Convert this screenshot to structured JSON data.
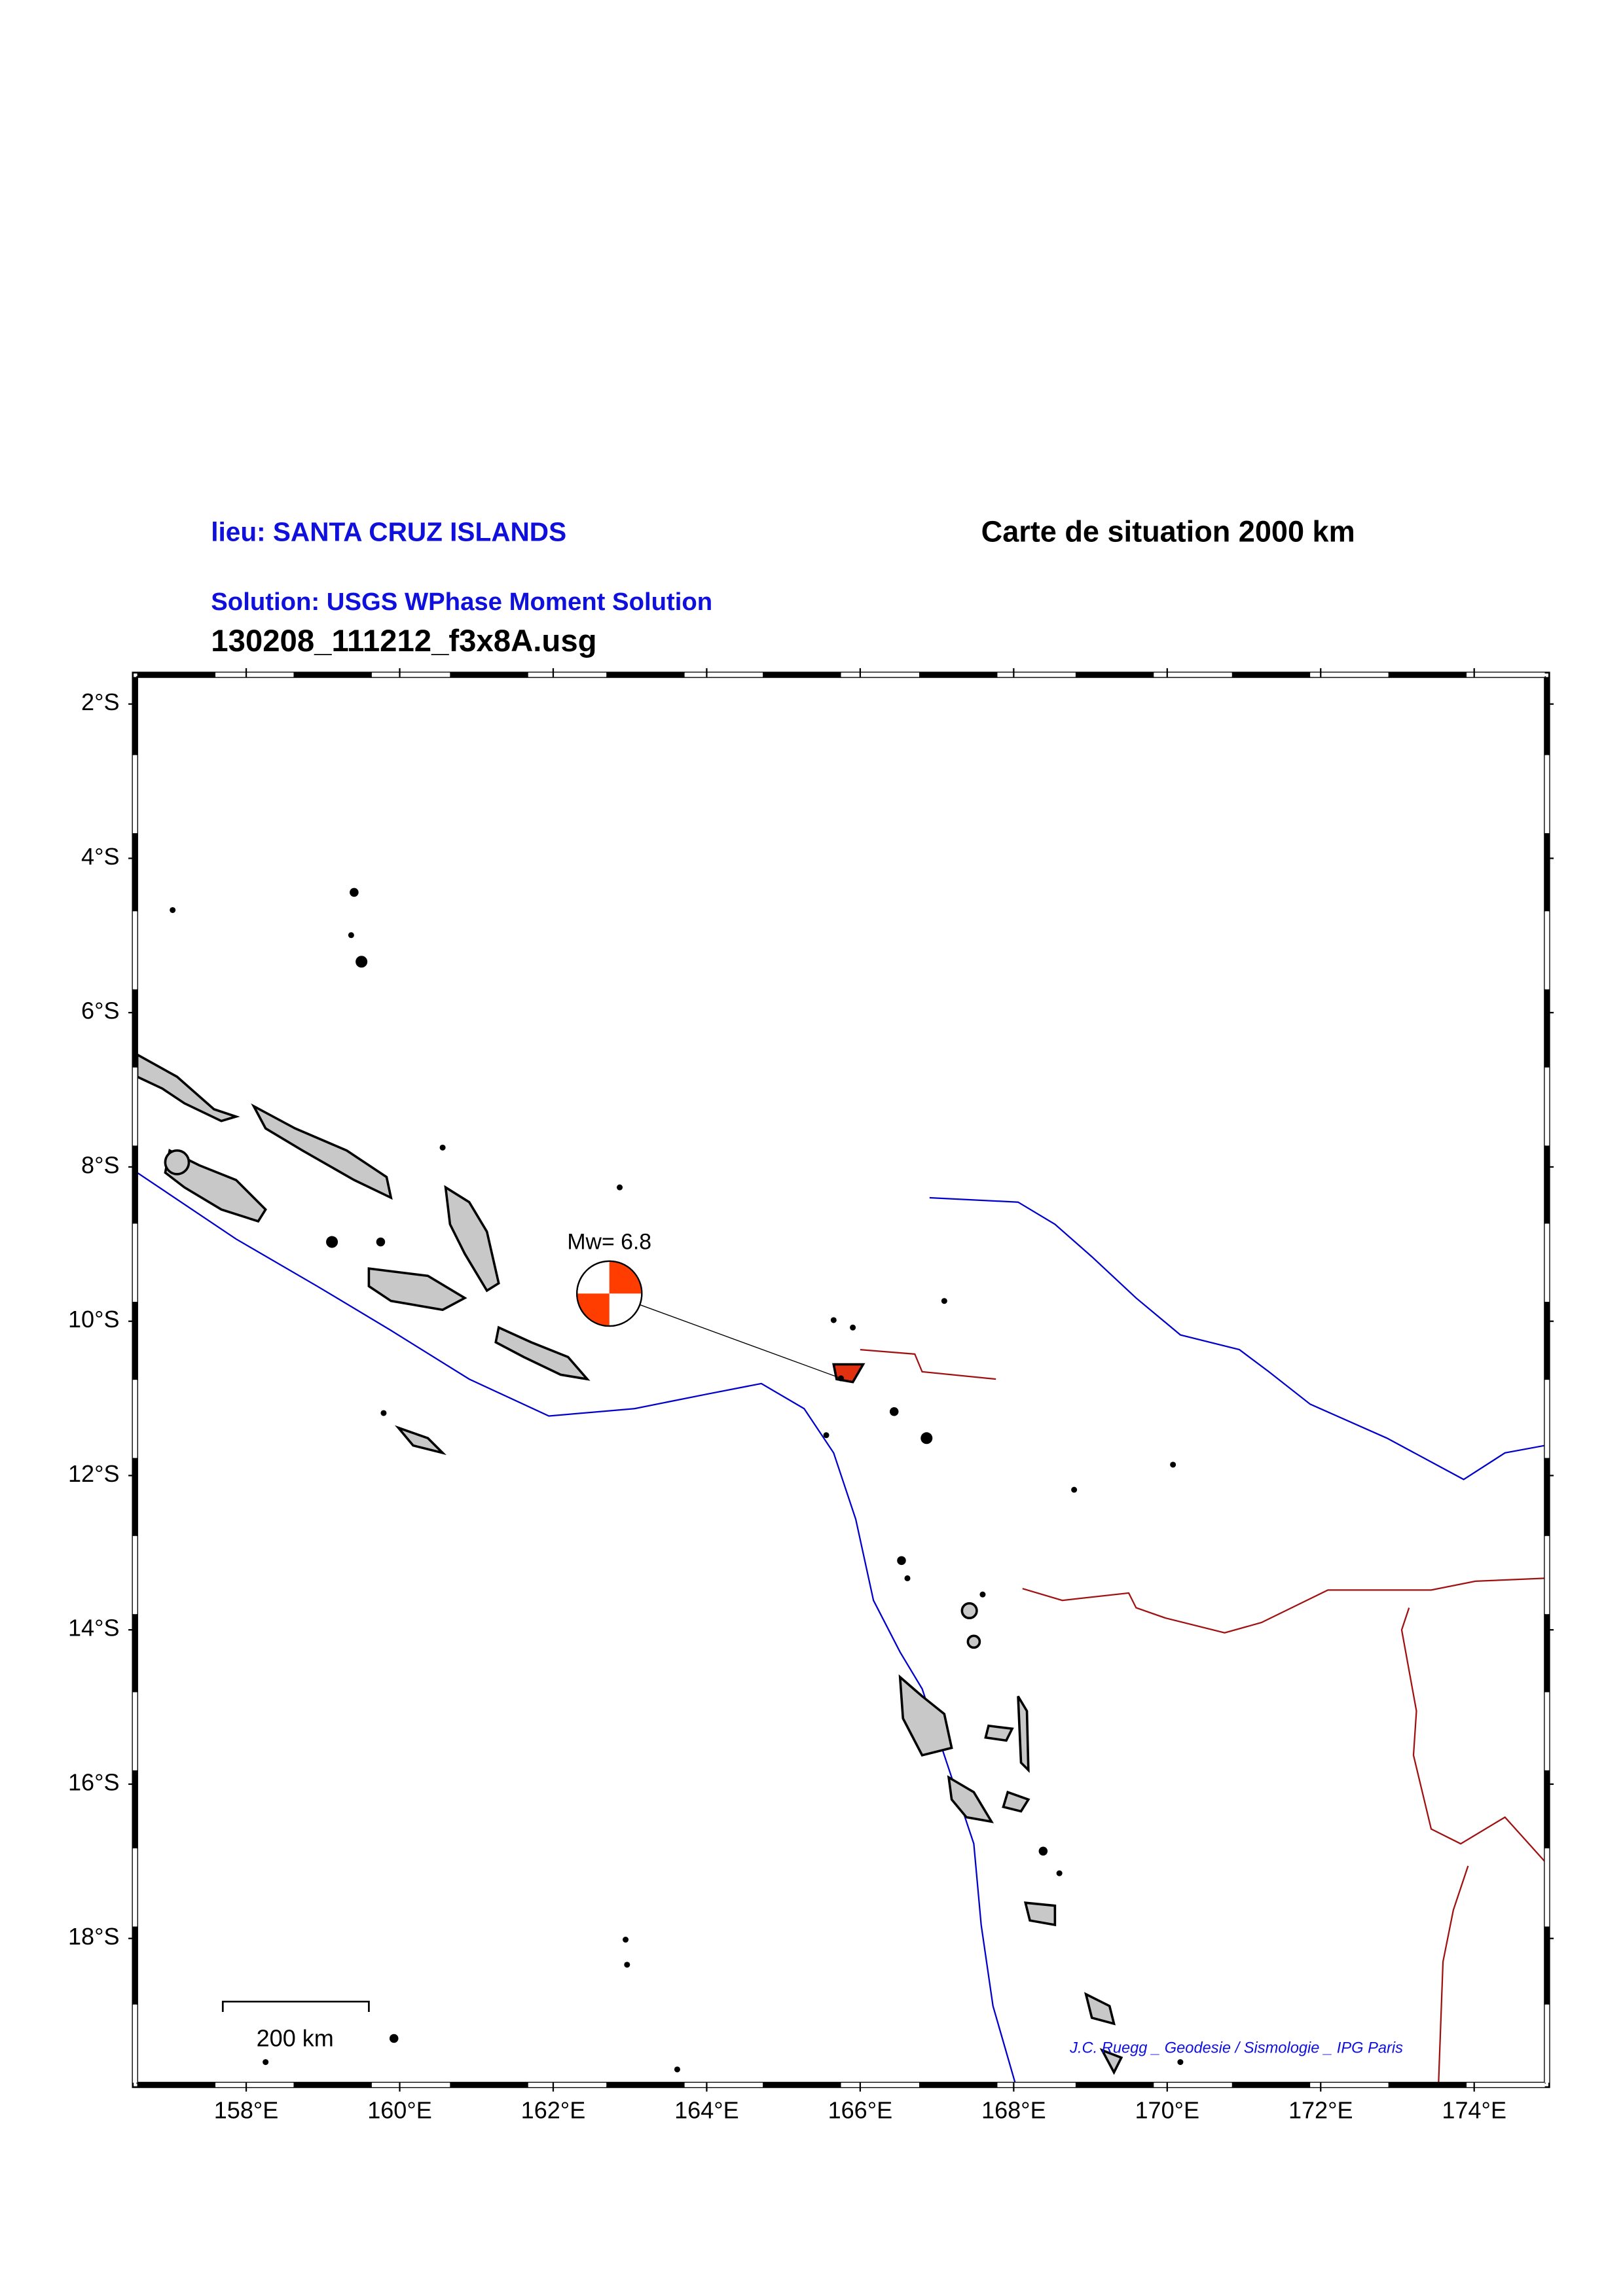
{
  "header": {
    "location": "lieu: SANTA CRUZ ISLANDS",
    "map_title": "Carte de situation 2000 km",
    "solution": "Solution: USGS WPhase Moment Solution",
    "file": "130208_111212_f3x8A.usg"
  },
  "map": {
    "lonlim": [
      156.58,
      174.92
    ],
    "latlim": [
      -1.65,
      -19.87
    ],
    "lon_ticks": [
      {
        "value": 158,
        "label": "158°E"
      },
      {
        "value": 160,
        "label": "160°E"
      },
      {
        "value": 162,
        "label": "162°E"
      },
      {
        "value": 164,
        "label": "164°E"
      },
      {
        "value": 166,
        "label": "166°E"
      },
      {
        "value": 168,
        "label": "168°E"
      },
      {
        "value": 170,
        "label": "170°E"
      },
      {
        "value": 172,
        "label": "172°E"
      },
      {
        "value": 174,
        "label": "174°E"
      }
    ],
    "lat_ticks": [
      {
        "value": -2,
        "label": "2°S"
      },
      {
        "value": -4,
        "label": "4°S"
      },
      {
        "value": -6,
        "label": "6°S"
      },
      {
        "value": -8,
        "label": "8°S"
      },
      {
        "value": -10,
        "label": "10°S"
      },
      {
        "value": -12,
        "label": "12°S"
      },
      {
        "value": -14,
        "label": "14°S"
      },
      {
        "value": -16,
        "label": "16°S"
      },
      {
        "value": -18,
        "label": "18°S"
      }
    ],
    "event": {
      "lon": 165.75,
      "lat": -10.74,
      "label": "Mw= 6.8"
    },
    "scale_label": "200 km",
    "credit": "J.C. Ruegg _ Geodesie / Sismologie _ IPG Paris"
  }
}
